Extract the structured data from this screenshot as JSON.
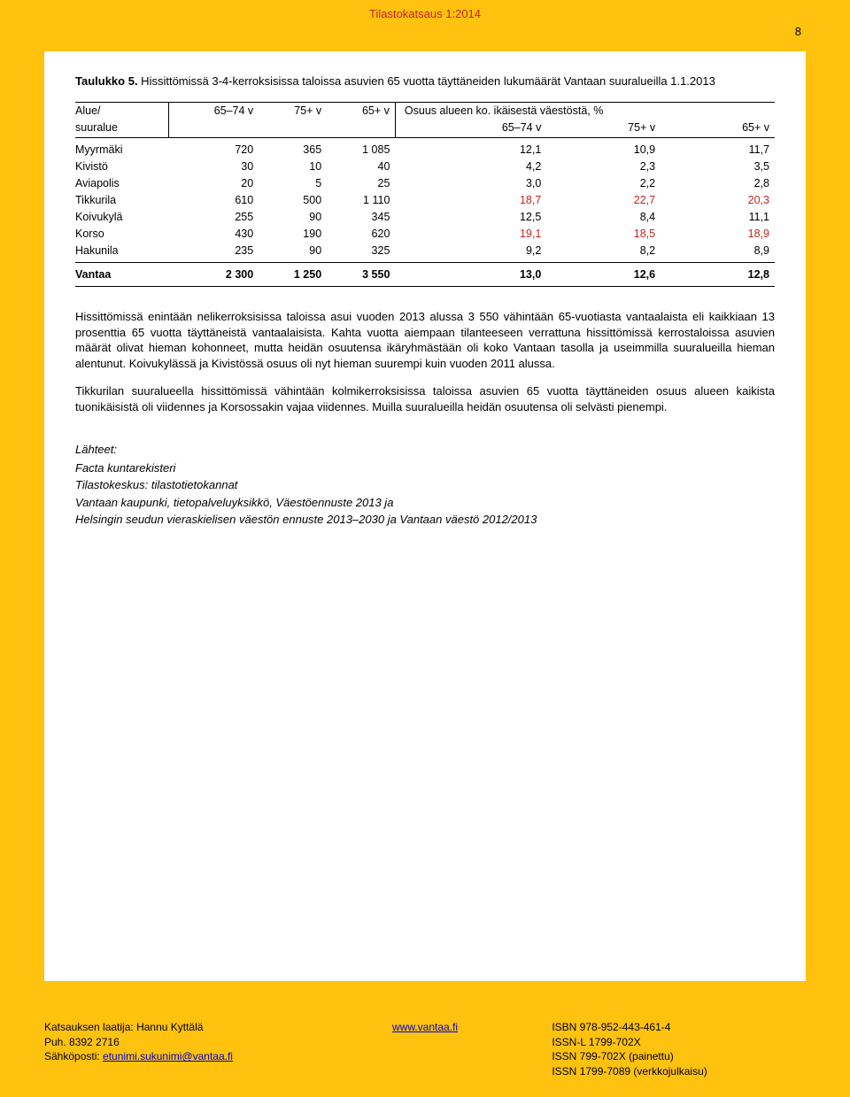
{
  "header": {
    "title": "Tilastokatsaus 1:2014",
    "pagenum": "8"
  },
  "table": {
    "caption_bold": "Taulukko 5.",
    "caption_rest": " Hissittömissä 3-4-kerroksisissa taloissa asuvien 65 vuotta täyttäneiden lukumäärät Vantaan suuralueilla 1.1.2013",
    "head": {
      "col1_a": "Alue/",
      "col1_b": "suuralue",
      "c1": "65–74 v",
      "c2": "75+ v",
      "c3": "65+ v",
      "right_top": "Osuus alueen ko. ikäisestä väestöstä, %",
      "r1": "65–74 v",
      "r2": "75+ v",
      "r3": "65+ v"
    },
    "rows": [
      {
        "n": "Myyrmäki",
        "a": "720",
        "b": "365",
        "c": "1 085",
        "d": "12,1",
        "e": "10,9",
        "f": "11,7",
        "hl": []
      },
      {
        "n": "Kivistö",
        "a": "30",
        "b": "10",
        "c": "40",
        "d": "4,2",
        "e": "2,3",
        "f": "3,5",
        "hl": []
      },
      {
        "n": "Aviapolis",
        "a": "20",
        "b": "5",
        "c": "25",
        "d": "3,0",
        "e": "2,2",
        "f": "2,8",
        "hl": []
      },
      {
        "n": "Tikkurila",
        "a": "610",
        "b": "500",
        "c": "1 110",
        "d": "18,7",
        "e": "22,7",
        "f": "20,3",
        "hl": [
          "d",
          "e",
          "f"
        ]
      },
      {
        "n": "Koivukylä",
        "a": "255",
        "b": "90",
        "c": "345",
        "d": "12,5",
        "e": "8,4",
        "f": "11,1",
        "hl": []
      },
      {
        "n": "Korso",
        "a": "430",
        "b": "190",
        "c": "620",
        "d": "19,1",
        "e": "18,5",
        "f": "18,9",
        "hl": [
          "d",
          "e",
          "f"
        ]
      },
      {
        "n": "Hakunila",
        "a": "235",
        "b": "90",
        "c": "325",
        "d": "9,2",
        "e": "8,2",
        "f": "8,9",
        "hl": []
      }
    ],
    "total": {
      "n": "Vantaa",
      "a": "2 300",
      "b": "1 250",
      "c": "3 550",
      "d": "13,0",
      "e": "12,6",
      "f": "12,8"
    }
  },
  "paras": [
    "Hissittömissä enintään nelikerroksisissa taloissa asui vuoden 2013 alussa 3 550 vähintään 65-vuotiasta vantaalaista eli kaikkiaan 13 prosenttia 65 vuotta täyttäneistä vantaalaisista. Kahta vuotta aiempaan tilanteeseen verrattuna hissittömissä kerrostaloissa asuvien määrät olivat hieman kohonneet, mutta heidän osuutensa ikäryhmästään oli koko Vantaan tasolla ja useimmilla suuralueilla hieman alentunut. Koivukylässä ja Kivistössä osuus oli nyt hieman suurempi kuin vuoden 2011 alussa.",
    "Tikkurilan suuralueella hissittömissä vähintään kolmikerroksisissa taloissa asuvien 65 vuotta täyttäneiden osuus alueen kaikista tuonikäisistä oli viidennes ja Korsossakin vajaa viidennes. Muilla suuralueilla heidän osuutensa oli selvästi pienempi."
  ],
  "sources": {
    "hdr": "Lähteet:",
    "lines": [
      "Facta kuntarekisteri",
      "Tilastokeskus: tilastotietokannat",
      "Vantaan kaupunki, tietopalveluyksikkö, Väestöennuste 2013 ja",
      "Helsingin seudun vieraskielisen väestön ennuste 2013–2030 ja Vantaan väestö 2012/2013"
    ]
  },
  "footer": {
    "left1": "Katsauksen laatija: Hannu Kyttälä",
    "left2": "Puh. 8392 2716",
    "left3a": "Sähköposti: ",
    "left3b": "etunimi.sukunimi@vantaa.fi",
    "mid": "www.vantaa.fi",
    "r1": "ISBN 978-952-443-461-4",
    "r2": "ISSN-L 1799-702X",
    "r3": "ISSN 799-702X (painettu)",
    "r4": "ISSN 1799-7089 (verkkojulkaisu)"
  }
}
